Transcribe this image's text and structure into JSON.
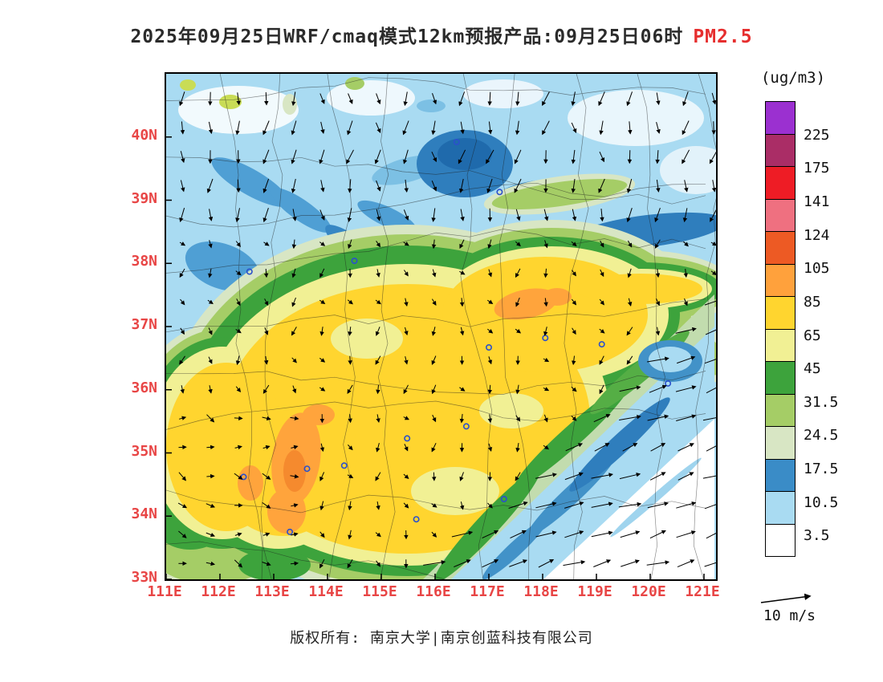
{
  "title": {
    "prefix": "2025年09月25日WRF/cmaq模式12km预报产品:09月25日06时",
    "species": "PM2.5",
    "species_color": "#e62e2e"
  },
  "colorbar": {
    "unit": "(ug/m3)",
    "tick_labels": [
      "225",
      "175",
      "141",
      "124",
      "105",
      "85",
      "65",
      "45",
      "31.5",
      "24.5",
      "17.5",
      "10.5",
      "3.5"
    ],
    "cell_colors_top_to_bottom": [
      "#9B30D0",
      "#AA2D66",
      "#EE1C25",
      "#EF7080",
      "#ED5A24",
      "#FFA13C",
      "#FFD52F",
      "#F1F094",
      "#3DA33C",
      "#A5CD66",
      "#D8E6C4",
      "#3A8CC7",
      "#A9DBF2",
      "#FFFFFF"
    ]
  },
  "axes": {
    "lat_labels": [
      "40N",
      "39N",
      "38N",
      "37N",
      "36N",
      "35N",
      "34N",
      "33N"
    ],
    "lon_labels": [
      "111E",
      "112E",
      "113E",
      "114E",
      "115E",
      "116E",
      "117E",
      "118E",
      "119E",
      "120E",
      "121E"
    ],
    "tick_color": "#e84545"
  },
  "wind_legend": {
    "label": "10 m/s"
  },
  "footer": {
    "text": "版权所有: 南京大学|南京创蓝科技有限公司"
  },
  "map": {
    "extent": {
      "lon_min": 111,
      "lon_max": 121.2,
      "lat_min": 33,
      "lat_max": 41
    },
    "city_markers": [
      [
        116.4,
        39.92
      ],
      [
        117.2,
        39.13
      ],
      [
        114.5,
        38.04
      ],
      [
        112.55,
        37.87
      ],
      [
        117.0,
        36.67
      ],
      [
        118.05,
        36.82
      ],
      [
        119.1,
        36.72
      ],
      [
        120.33,
        36.1
      ],
      [
        116.58,
        35.42
      ],
      [
        115.48,
        35.23
      ],
      [
        113.62,
        34.75
      ],
      [
        114.31,
        34.8
      ],
      [
        112.44,
        34.62
      ],
      [
        117.28,
        34.27
      ],
      [
        115.65,
        33.95
      ],
      [
        113.3,
        33.75
      ]
    ]
  },
  "chart_data": {
    "type": "heatmap",
    "title": "2025年09月25日WRF/cmaq模式12km预报产品:09月25日06时 PM2.5",
    "variable": "PM2.5",
    "unit": "ug/m3",
    "model": "WRF/cmaq 12km",
    "lon_range": [
      111,
      121.2
    ],
    "lat_range": [
      33,
      41
    ],
    "contour_levels": [
      3.5,
      10.5,
      17.5,
      24.5,
      31.5,
      45,
      65,
      85,
      105,
      124,
      141,
      175,
      225
    ],
    "level_colors_low_to_high": [
      "#FFFFFF",
      "#A9DBF2",
      "#3A8CC7",
      "#D8E6C4",
      "#A5CD66",
      "#3DA33C",
      "#F1F094",
      "#FFD52F",
      "#FFA13C",
      "#ED5A24",
      "#EF7080",
      "#EE1C25",
      "#AA2D66",
      "#9B30D0"
    ],
    "features": [
      {
        "region": "North / northwest (north of ~38.5N)",
        "value_range": "0-17.5"
      },
      {
        "region": "Dark-blue patches near 116-118E, 39-40N and band 118.5-121E ~38.5N",
        "value_range": "10.5-17.5"
      },
      {
        "region": "Central plain 112-119E, 33.5-38.3N (dominant yellow)",
        "value_range": "45-85"
      },
      {
        "region": "Hotspot ~117.3-118.4E, 37.2-37.6N",
        "value_range": "85-105"
      },
      {
        "region": "Hotspot ~113-114E, 33.9-35.7N",
        "value_range": "85-105"
      },
      {
        "region": "Green transition belts around yellow mass and along SE diagonal",
        "value_range": "17.5-45"
      },
      {
        "region": "Southeast coastal band from ~116E,33N toward 121E,37N",
        "value_range": "3.5-17.5"
      },
      {
        "region": "Southeast corner (118-121E south of ~34.5N)",
        "value_range": "0-3.5"
      }
    ],
    "wind": {
      "legend": "10 m/s",
      "pattern": "southward arrows over the north, weak variable arrows over the central plain, strong east-northeastward arrows over the southeast"
    }
  }
}
